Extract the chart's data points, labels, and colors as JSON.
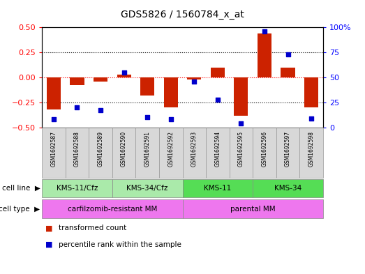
{
  "title": "GDS5826 / 1560784_x_at",
  "samples": [
    "GSM1692587",
    "GSM1692588",
    "GSM1692589",
    "GSM1692590",
    "GSM1692591",
    "GSM1692592",
    "GSM1692593",
    "GSM1692594",
    "GSM1692595",
    "GSM1692596",
    "GSM1692597",
    "GSM1692598"
  ],
  "transformed_count": [
    -0.32,
    -0.08,
    -0.04,
    0.03,
    -0.18,
    -0.3,
    -0.02,
    0.1,
    -0.38,
    0.44,
    0.1,
    -0.3
  ],
  "percentile_rank": [
    8,
    20,
    17,
    55,
    10,
    8,
    46,
    28,
    4,
    96,
    73,
    9
  ],
  "cell_line_groups": [
    {
      "label": "KMS-11/Cfz",
      "start": 0,
      "end": 3,
      "color": "#AAEAAA"
    },
    {
      "label": "KMS-34/Cfz",
      "start": 3,
      "end": 6,
      "color": "#AAEAAA"
    },
    {
      "label": "KMS-11",
      "start": 6,
      "end": 9,
      "color": "#55DD55"
    },
    {
      "label": "KMS-34",
      "start": 9,
      "end": 12,
      "color": "#55DD55"
    }
  ],
  "cell_type_groups": [
    {
      "label": "carfilzomib-resistant MM",
      "start": 0,
      "end": 6,
      "color": "#EE77EE"
    },
    {
      "label": "parental MM",
      "start": 6,
      "end": 12,
      "color": "#EE77EE"
    }
  ],
  "bar_color": "#CC2200",
  "dot_color": "#0000CC",
  "ylim_left": [
    -0.5,
    0.5
  ],
  "ylim_right": [
    0,
    100
  ],
  "yticks_left": [
    -0.5,
    -0.25,
    0,
    0.25,
    0.5
  ],
  "yticks_right": [
    0,
    25,
    50,
    75,
    100
  ],
  "ytick_labels_right": [
    "0",
    "25",
    "50",
    "75",
    "100%"
  ],
  "hlines": [
    -0.25,
    0,
    0.25
  ],
  "hline_colors": [
    "black",
    "red",
    "black"
  ],
  "hline_styles": [
    "dotted",
    "dotted",
    "dotted"
  ],
  "plot_bg": "#FFFFFF",
  "bar_width": 0.6,
  "sample_box_color": "#D8D8D8"
}
